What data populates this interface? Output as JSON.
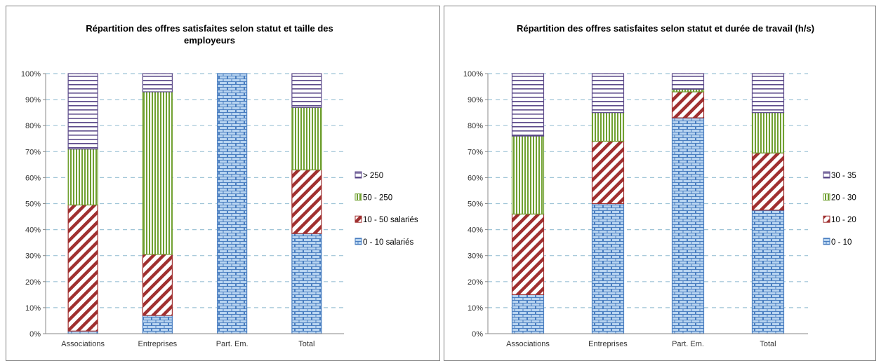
{
  "charts": [
    {
      "chart_data": {
        "type": "bar",
        "stacked": true,
        "percent_stacked": true,
        "title": "Répartition des offres satisfaites selon statut et taille des employeurs",
        "categories": [
          "Associations",
          "Entreprises",
          "Part. Em.",
          "Total"
        ],
        "ylim": [
          0,
          100
        ],
        "yticks": [
          "0%",
          "10%",
          "20%",
          "30%",
          "40%",
          "50%",
          "60%",
          "70%",
          "80%",
          "90%",
          "100%"
        ],
        "grid": true,
        "legend_position": "right",
        "series": [
          {
            "name": "0 - 10 salariés",
            "values": [
              1,
              7,
              100,
              38.5
            ]
          },
          {
            "name": "10 - 50 salariés",
            "values": [
              48.5,
              23.5,
              0,
              24.5
            ]
          },
          {
            "name": "50 - 250",
            "values": [
              21.5,
              62.5,
              0,
              24
            ]
          },
          {
            "name": "> 250",
            "values": [
              29,
              7,
              0,
              13
            ]
          }
        ]
      }
    },
    {
      "chart_data": {
        "type": "bar",
        "stacked": true,
        "percent_stacked": true,
        "title": "Répartition des offres satisfaites selon statut et durée de travail (h/s)",
        "categories": [
          "Associations",
          "Entreprises",
          "Part. Em.",
          "Total"
        ],
        "ylim": [
          0,
          100
        ],
        "yticks": [
          "0%",
          "10%",
          "20%",
          "30%",
          "40%",
          "50%",
          "60%",
          "70%",
          "80%",
          "90%",
          "100%"
        ],
        "grid": true,
        "legend_position": "right",
        "series": [
          {
            "name": "0 - 10",
            "values": [
              15,
              50,
              83,
              47.5
            ]
          },
          {
            "name": "10 - 20",
            "values": [
              31,
              24,
              10,
              22
            ]
          },
          {
            "name": "20 - 30",
            "values": [
              30,
              11,
              1,
              15.5
            ]
          },
          {
            "name": "30 - 35",
            "values": [
              24,
              15,
              6,
              15
            ]
          }
        ]
      }
    }
  ],
  "colors": {
    "s0_fill": "#b8d4f0",
    "s0_line": "#4a7ec0",
    "s1_fill": "#ffffff",
    "s1_line": "#a03030",
    "s2_fill": "#ffffff",
    "s2_line": "#70a030",
    "s3_fill": "#ffffff",
    "s3_line": "#5c4a8a",
    "grid": "#9dc3d6"
  }
}
